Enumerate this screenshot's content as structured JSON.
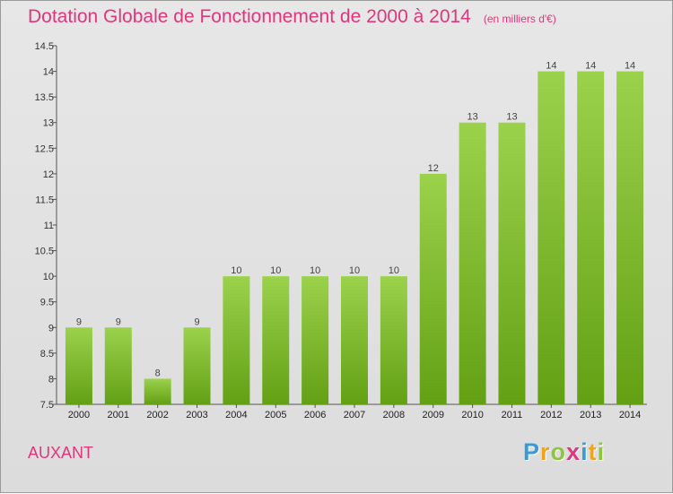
{
  "title": "Dotation Globale de Fonctionnement de 2000 à 2014",
  "unit_label": "(en milliers d'€)",
  "commune": "AUXANT",
  "logo": {
    "letters": [
      "P",
      "r",
      "o",
      "x",
      "i",
      "t",
      "i"
    ],
    "colors": [
      "#3a9ad9",
      "#f2a31b",
      "#8cc63f",
      "#e1357e",
      "#3a9ad9",
      "#f2a31b",
      "#8cc63f"
    ]
  },
  "colors": {
    "title": "#e1357e",
    "bar_top": "#9bd24c",
    "bar_bottom": "#63a014",
    "background": "#e1e1e1"
  },
  "chart_data": {
    "type": "bar",
    "title": "Dotation Globale de Fonctionnement de 2000 à 2014",
    "subtitle": "(en milliers d'€)",
    "categories": [
      "2000",
      "2001",
      "2002",
      "2003",
      "2004",
      "2005",
      "2006",
      "2007",
      "2008",
      "2009",
      "2010",
      "2011",
      "2012",
      "2013",
      "2014"
    ],
    "values": [
      9,
      9,
      8,
      9,
      10,
      10,
      10,
      10,
      10,
      12,
      13,
      13,
      14,
      14,
      14
    ],
    "data_labels": [
      "9",
      "9",
      "8",
      "9",
      "10",
      "10",
      "10",
      "10",
      "10",
      "12",
      "13",
      "13",
      "14",
      "14",
      "14"
    ],
    "ylim": [
      7.5,
      14.5
    ],
    "yticks": [
      7.5,
      8,
      8.5,
      9,
      9.5,
      10,
      10.5,
      11,
      11.5,
      12,
      12.5,
      13,
      13.5,
      14,
      14.5
    ],
    "ytick_labels": [
      "7.5",
      "8",
      "8.5",
      "9",
      "9.5",
      "10",
      "10.5",
      "11",
      "11.5",
      "12",
      "12.5",
      "13",
      "13.5",
      "14",
      "14.5"
    ],
    "grid": false,
    "legend": "none"
  }
}
